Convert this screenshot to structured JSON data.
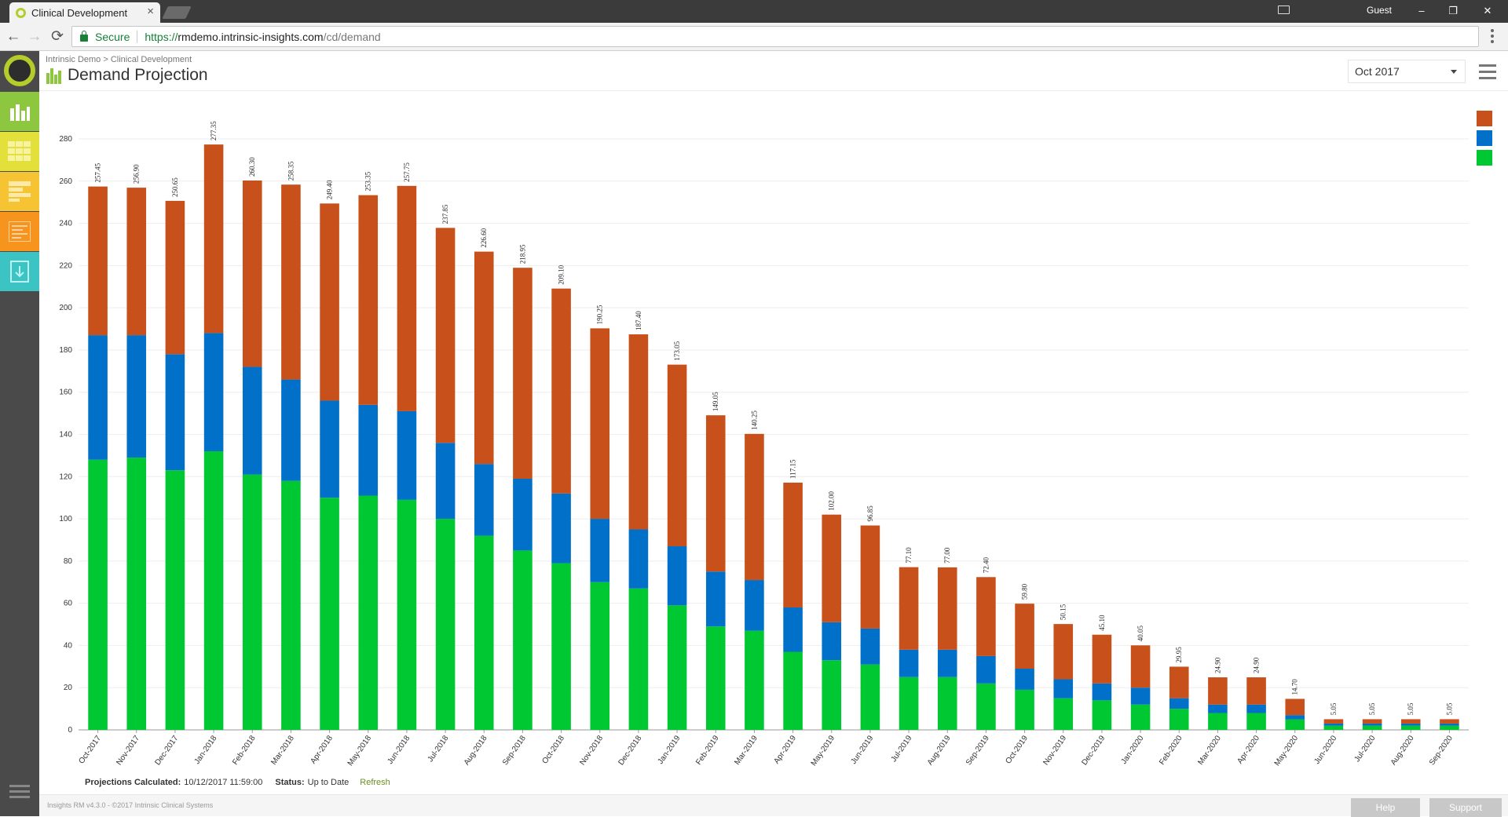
{
  "browser": {
    "tab_title": "Clinical Development",
    "tab_close": "×",
    "user": "Guest",
    "minimize": "–",
    "restore": "❐",
    "close": "✕",
    "back": "←",
    "forward": "→",
    "reload": "⟳",
    "secure_label": "Secure",
    "url_protocol": "https://",
    "url_host": "rmdemo.intrinsic-insights.com",
    "url_path": "/cd/demand"
  },
  "app": {
    "breadcrumb": "Intrinsic Demo > Clinical Development",
    "page_title": "Demand Projection",
    "month_selected": "Oct 2017",
    "status": {
      "projections_label": "Projections Calculated:",
      "projections_value": "10/12/2017 11:59:00",
      "status_label": "Status:",
      "status_value": "Up to Date",
      "refresh": "Refresh"
    },
    "footer": {
      "copyright": "Insights RM v4.3.0 - ©2017 Intrinsic Clinical Systems",
      "help": "Help",
      "support": "Support"
    },
    "sidebar_icons": [
      "bar-chart-icon",
      "grid-icon",
      "stacked-list-icon",
      "document-list-icon",
      "download-icon"
    ],
    "colors": {
      "sidebar_bg": "#4a4a4a",
      "logo_ring": "#b5cc2b",
      "sidebar_buttons": [
        "#8dc63f",
        "#e3df3b",
        "#f6c433",
        "#f7941d",
        "#3cc4c4"
      ]
    }
  },
  "chart_data": {
    "type": "bar",
    "stacked": true,
    "ylim": [
      0,
      280
    ],
    "yticks": [
      0,
      20,
      40,
      60,
      80,
      100,
      120,
      140,
      160,
      180,
      200,
      220,
      240,
      260,
      280
    ],
    "grid": true,
    "legend_position": "top-right",
    "categories": [
      "Oct-2017",
      "Nov-2017",
      "Dec-2017",
      "Jan-2018",
      "Feb-2018",
      "Mar-2018",
      "Apr-2018",
      "May-2018",
      "Jun-2018",
      "Jul-2018",
      "Aug-2018",
      "Sep-2018",
      "Oct-2018",
      "Nov-2018",
      "Dec-2018",
      "Jan-2019",
      "Feb-2019",
      "Mar-2019",
      "Apr-2019",
      "May-2019",
      "Jun-2019",
      "Jul-2019",
      "Aug-2019",
      "Sep-2019",
      "Oct-2019",
      "Nov-2019",
      "Dec-2019",
      "Jan-2020",
      "Feb-2020",
      "Mar-2020",
      "Apr-2020",
      "May-2020",
      "Jun-2020",
      "Jul-2020",
      "Aug-2020",
      "Sep-2020"
    ],
    "totals": [
      "257.45",
      "256.90",
      "250.65",
      "277.35",
      "260.30",
      "258.35",
      "249.40",
      "253.35",
      "257.75",
      "237.85",
      "226.60",
      "218.95",
      "209.10",
      "190.25",
      "187.40",
      "173.05",
      "149.05",
      "140.25",
      "117.15",
      "102.00",
      "96.85",
      "77.10",
      "77.00",
      "72.40",
      "59.80",
      "50.15",
      "45.10",
      "40.05",
      "29.95",
      "24.90",
      "24.90",
      "14.70",
      "5.05",
      "5.05",
      "5.05",
      "5.05"
    ],
    "series": [
      {
        "color": "#00c832",
        "values": [
          128,
          129,
          123,
          132,
          121,
          118,
          110,
          111,
          109,
          100,
          92,
          85,
          79,
          70,
          67,
          59,
          49,
          47,
          37,
          33,
          31,
          25,
          25,
          22,
          19,
          15,
          14,
          12,
          10,
          8,
          8,
          5,
          2,
          2,
          2,
          2
        ]
      },
      {
        "color": "#0070c8",
        "values": [
          59,
          58,
          55,
          56,
          51,
          48,
          46,
          43,
          42,
          36,
          34,
          34,
          33,
          30,
          28,
          28,
          26,
          24,
          21,
          18,
          17,
          13,
          13,
          13,
          10,
          9,
          8,
          8,
          5,
          4,
          4,
          2,
          1,
          1,
          1,
          1
        ]
      },
      {
        "color": "#c8501a",
        "values": [
          70.45,
          69.9,
          72.65,
          89.35,
          88.3,
          92.35,
          93.4,
          99.35,
          106.75,
          101.85,
          100.6,
          99.95,
          97.1,
          90.25,
          92.4,
          86.05,
          74.05,
          69.25,
          59.15,
          51,
          48.85,
          39.1,
          39,
          37.4,
          30.8,
          26.15,
          23.1,
          20.05,
          14.95,
          12.9,
          12.9,
          7.7,
          2.05,
          2.05,
          2.05,
          2.05
        ]
      }
    ]
  }
}
